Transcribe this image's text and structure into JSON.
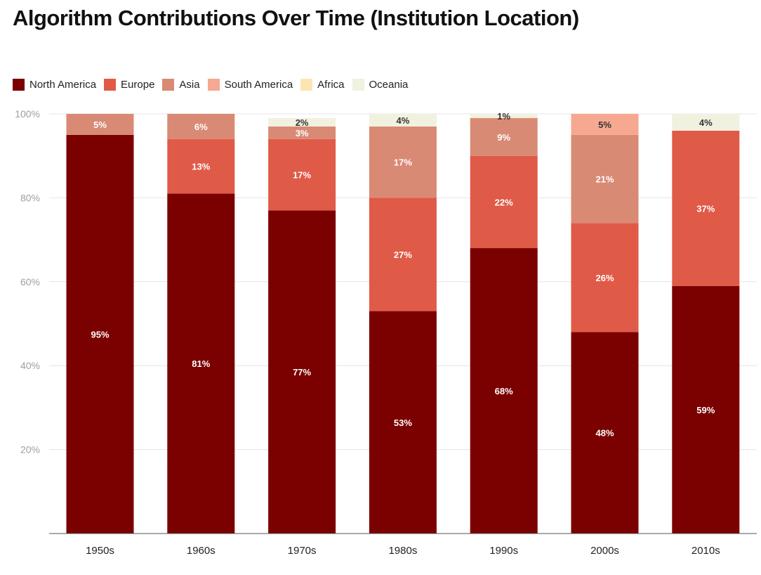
{
  "chart_data": {
    "type": "bar",
    "stacked": true,
    "title": "Algorithm Contributions Over Time (Institution Location)",
    "xlabel": "",
    "ylabel": "",
    "ylim": [
      0,
      100
    ],
    "y_ticks": [
      "20%",
      "40%",
      "60%",
      "80%",
      "100%"
    ],
    "y_tick_values": [
      20,
      40,
      60,
      80,
      100
    ],
    "grid": true,
    "legend_position": "top-left",
    "categories": [
      "1950s",
      "1960s",
      "1970s",
      "1980s",
      "1990s",
      "2000s",
      "2010s"
    ],
    "series": [
      {
        "name": "North America",
        "color": "#7b0000",
        "values": [
          95,
          81,
          77,
          53,
          68,
          48,
          59
        ],
        "labels": [
          "95%",
          "81%",
          "77%",
          "53%",
          "68%",
          "48%",
          "59%"
        ]
      },
      {
        "name": "Europe",
        "color": "#e05a48",
        "values": [
          0,
          13,
          17,
          27,
          22,
          26,
          37
        ],
        "labels": [
          "",
          "13%",
          "17%",
          "27%",
          "22%",
          "26%",
          "37%"
        ]
      },
      {
        "name": "Asia",
        "color": "#d98a74",
        "values": [
          5,
          6,
          3,
          17,
          9,
          21,
          0
        ],
        "labels": [
          "5%",
          "6%",
          "3%",
          "17%",
          "9%",
          "21%",
          ""
        ]
      },
      {
        "name": "South America",
        "color": "#f6a890",
        "values": [
          0,
          0,
          0,
          0,
          0,
          5,
          0
        ],
        "labels": [
          "",
          "",
          "",
          "",
          "",
          "5%",
          ""
        ]
      },
      {
        "name": "Africa",
        "color": "#fde5b2",
        "values": [
          0,
          0,
          0,
          0,
          0,
          0,
          0
        ],
        "labels": [
          "",
          "",
          "",
          "",
          "",
          "",
          ""
        ]
      },
      {
        "name": "Oceania",
        "color": "#f1f1e0",
        "values": [
          0,
          0,
          2,
          4,
          1,
          0,
          4
        ],
        "labels": [
          "",
          "",
          "2%",
          "4%",
          "1%",
          "",
          "4%"
        ]
      }
    ]
  }
}
